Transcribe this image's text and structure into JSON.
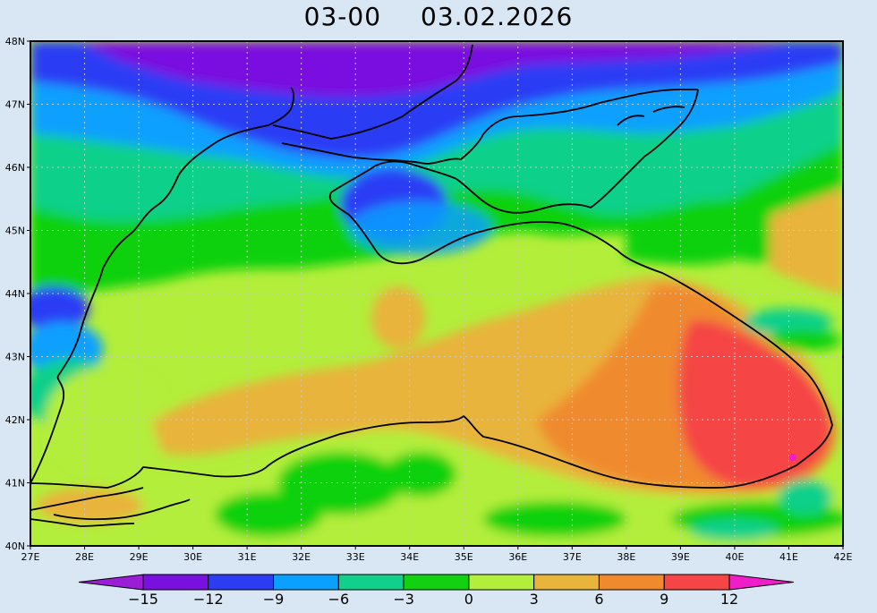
{
  "title": {
    "time": "03-00",
    "date": "03.02.2026"
  },
  "axes": {
    "lat_labels": [
      "48N",
      "47N",
      "46N",
      "45N",
      "44N",
      "43N",
      "42N",
      "41N",
      "40N"
    ],
    "lon_labels": [
      "27E",
      "28E",
      "29E",
      "30E",
      "31E",
      "32E",
      "33E",
      "34E",
      "35E",
      "36E",
      "37E",
      "38E",
      "39E",
      "40E",
      "41E",
      "42E"
    ],
    "lat_range": [
      40,
      48
    ],
    "lon_range": [
      27,
      42
    ],
    "grid": "dotted"
  },
  "colorbar": {
    "labels": [
      "-15",
      "-12",
      "-9",
      "-6",
      "-3",
      "0",
      "3",
      "6",
      "9",
      "12"
    ],
    "boundaries": [
      -15,
      -12,
      -9,
      -6,
      -3,
      0,
      3,
      6,
      9,
      12
    ],
    "colors": [
      "#9b1ed6",
      "#7a10e0",
      "#2c3cf5",
      "#0aa0ff",
      "#10d08a",
      "#11d111",
      "#b2ee3a",
      "#e8b43a",
      "#f08a2e",
      "#f54545",
      "#f01ec8"
    ],
    "extend": "both"
  },
  "colors": {
    "background": "#d9e7f5",
    "land_coast": "#000000",
    "grid": "#c8c8c8"
  }
}
